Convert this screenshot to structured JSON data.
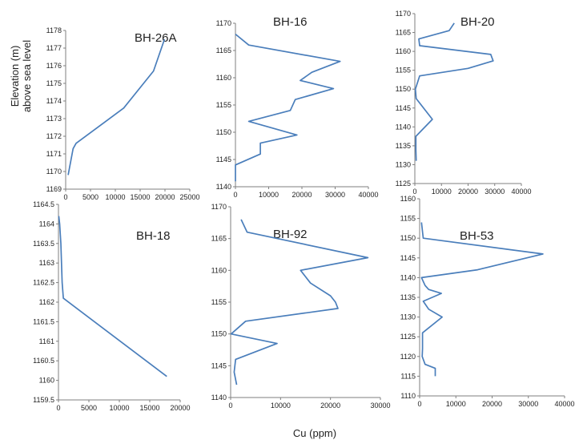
{
  "figure": {
    "ylabel_line1": "Elevation (m)",
    "ylabel_line2": "above sea level",
    "xlabel": "Cu (ppm)",
    "line_color": "#4a7ebb"
  },
  "chart_data": [
    {
      "type": "line",
      "title": "BH-26A",
      "xlim": [
        0,
        25000
      ],
      "ylim": [
        1169,
        1178
      ],
      "xticks": [
        "0",
        "5000",
        "10000",
        "15000",
        "20000",
        "25000"
      ],
      "yticks": [
        "1169",
        "1170",
        "1171",
        "1172",
        "1173",
        "1174",
        "1175",
        "1176",
        "1177",
        "1178"
      ],
      "points": [
        [
          19900,
          1177.5
        ],
        [
          17700,
          1175.7
        ],
        [
          11700,
          1173.6
        ],
        [
          2100,
          1171.6
        ],
        [
          1500,
          1171.3
        ],
        [
          500,
          1169.8
        ]
      ]
    },
    {
      "type": "line",
      "title": "BH-16",
      "xlim": [
        0,
        40000
      ],
      "ylim": [
        1140,
        1170
      ],
      "xticks": [
        "0",
        "10000",
        "20000",
        "30000",
        "40000"
      ],
      "yticks": [
        "1140",
        "1145",
        "1150",
        "1155",
        "1160",
        "1165",
        "1170"
      ],
      "points": [
        [
          0,
          1168
        ],
        [
          4000,
          1166
        ],
        [
          31500,
          1163
        ],
        [
          23000,
          1161
        ],
        [
          19500,
          1159.5
        ],
        [
          29500,
          1158
        ],
        [
          18000,
          1156
        ],
        [
          16500,
          1154
        ],
        [
          4000,
          1152
        ],
        [
          18500,
          1149.5
        ],
        [
          7500,
          1148
        ],
        [
          7500,
          1146
        ],
        [
          0,
          1144
        ],
        [
          0,
          1141
        ]
      ]
    },
    {
      "type": "line",
      "title": "BH-20",
      "xlim": [
        0,
        40000
      ],
      "ylim": [
        1125,
        1170
      ],
      "xticks": [
        "0",
        "10000",
        "20000",
        "30000",
        "40000"
      ],
      "yticks": [
        "1125",
        "1130",
        "1135",
        "1140",
        "1145",
        "1150",
        "1155",
        "1160",
        "1165",
        "1170"
      ],
      "points": [
        [
          14800,
          1167.5
        ],
        [
          12900,
          1165.5
        ],
        [
          1500,
          1163.3
        ],
        [
          1800,
          1161.5
        ],
        [
          28500,
          1159.2
        ],
        [
          29400,
          1157.5
        ],
        [
          20000,
          1155.5
        ],
        [
          1800,
          1153.5
        ],
        [
          200,
          1150
        ],
        [
          500,
          1147.5
        ],
        [
          6600,
          1142
        ],
        [
          400,
          1137.5
        ],
        [
          400,
          1134
        ],
        [
          500,
          1131
        ]
      ]
    },
    {
      "type": "line",
      "title": "BH-18",
      "xlim": [
        0,
        20000
      ],
      "ylim": [
        1159.5,
        1164.5
      ],
      "xticks": [
        "0",
        "5000",
        "10000",
        "15000",
        "20000"
      ],
      "yticks": [
        "1159.5",
        "1160",
        "1160.5",
        "1161",
        "1161.5",
        "1162",
        "1162.5",
        "1163",
        "1163.5",
        "1164",
        "1164.5"
      ],
      "points": [
        [
          50,
          1164.2
        ],
        [
          200,
          1164
        ],
        [
          400,
          1163.5
        ],
        [
          500,
          1163
        ],
        [
          600,
          1162.5
        ],
        [
          800,
          1162.1
        ],
        [
          17800,
          1160.1
        ]
      ]
    },
    {
      "type": "line",
      "title": "BH-92",
      "xlim": [
        0,
        30000
      ],
      "ylim": [
        1140,
        1170
      ],
      "xticks": [
        "0",
        "10000",
        "20000",
        "30000"
      ],
      "yticks": [
        "1140",
        "1145",
        "1150",
        "1155",
        "1160",
        "1165",
        "1170"
      ],
      "points": [
        [
          2100,
          1168
        ],
        [
          3300,
          1166
        ],
        [
          27500,
          1162
        ],
        [
          14000,
          1160
        ],
        [
          16000,
          1158
        ],
        [
          20000,
          1156
        ],
        [
          21000,
          1155
        ],
        [
          21500,
          1154
        ],
        [
          3000,
          1152
        ],
        [
          100,
          1150
        ],
        [
          9300,
          1148.5
        ],
        [
          1000,
          1146
        ],
        [
          700,
          1144
        ],
        [
          1200,
          1142
        ]
      ]
    },
    {
      "type": "line",
      "title": "BH-53",
      "xlim": [
        0,
        40000
      ],
      "ylim": [
        1110,
        1160
      ],
      "xticks": [
        "0",
        "10000",
        "20000",
        "30000",
        "40000"
      ],
      "yticks": [
        "1110",
        "1115",
        "1120",
        "1125",
        "1130",
        "1135",
        "1140",
        "1145",
        "1150",
        "1155",
        "1160"
      ],
      "points": [
        [
          500,
          1154
        ],
        [
          1000,
          1150
        ],
        [
          34000,
          1146
        ],
        [
          16000,
          1142
        ],
        [
          500,
          1140
        ],
        [
          1500,
          1138
        ],
        [
          2500,
          1137
        ],
        [
          6000,
          1136
        ],
        [
          1000,
          1134
        ],
        [
          2500,
          1132
        ],
        [
          6200,
          1130
        ],
        [
          800,
          1126
        ],
        [
          800,
          1122
        ],
        [
          700,
          1120
        ],
        [
          1500,
          1118
        ],
        [
          4300,
          1117
        ],
        [
          4300,
          1115
        ]
      ]
    }
  ]
}
